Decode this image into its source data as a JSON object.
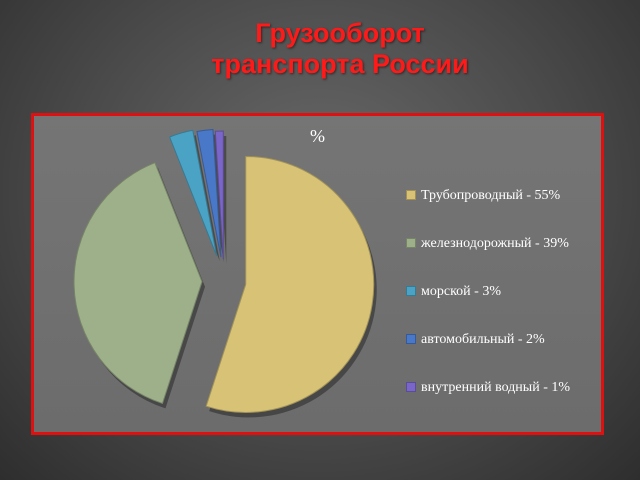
{
  "slide": {
    "title_line1": "Грузооборот",
    "title_line2": "транспорта России"
  },
  "chart_data": {
    "type": "pie",
    "label": "%",
    "legend_position": "right",
    "exploded": true,
    "slices": [
      {
        "label": "Трубопроводный - 55%",
        "value": 55,
        "color": "#d7c275"
      },
      {
        "label": "железнодорожный - 39%",
        "value": 39,
        "color": "#9eb08a"
      },
      {
        "label": "морской - 3%",
        "value": 3,
        "color": "#4aa3c4"
      },
      {
        "label": "автомобильный - 2%",
        "value": 2,
        "color": "#4a78c8"
      },
      {
        "label": "внутренний водный - 1%",
        "value": 1,
        "color": "#7a66c8"
      }
    ]
  }
}
